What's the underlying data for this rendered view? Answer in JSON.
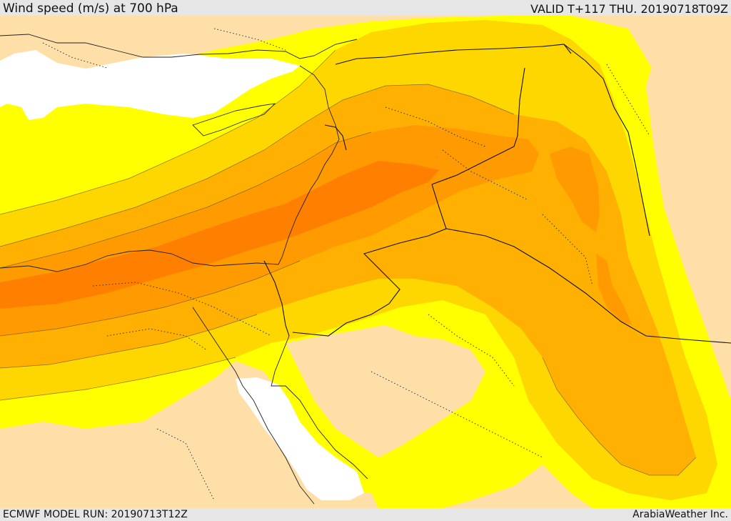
{
  "header": {
    "title": "Wind speed (m/s) at 700 hPa",
    "valid_time": "VALID T+117 THU. 20190718T09Z"
  },
  "footer": {
    "model_run": "ECMWF MODEL RUN: 20190713T12Z",
    "credit": "ArabiaWeather Inc."
  },
  "map": {
    "variable": "wind speed",
    "units": "m/s",
    "level": "700 hPa",
    "colors": {
      "below_lowest": "#ffdfa8",
      "band1": "#ffff00",
      "band2": "#ffd700",
      "band3": "#ffb000",
      "band4": "#ff9a00",
      "band5": "#ff8000",
      "no_data_sea": "#ffffff"
    }
  }
}
